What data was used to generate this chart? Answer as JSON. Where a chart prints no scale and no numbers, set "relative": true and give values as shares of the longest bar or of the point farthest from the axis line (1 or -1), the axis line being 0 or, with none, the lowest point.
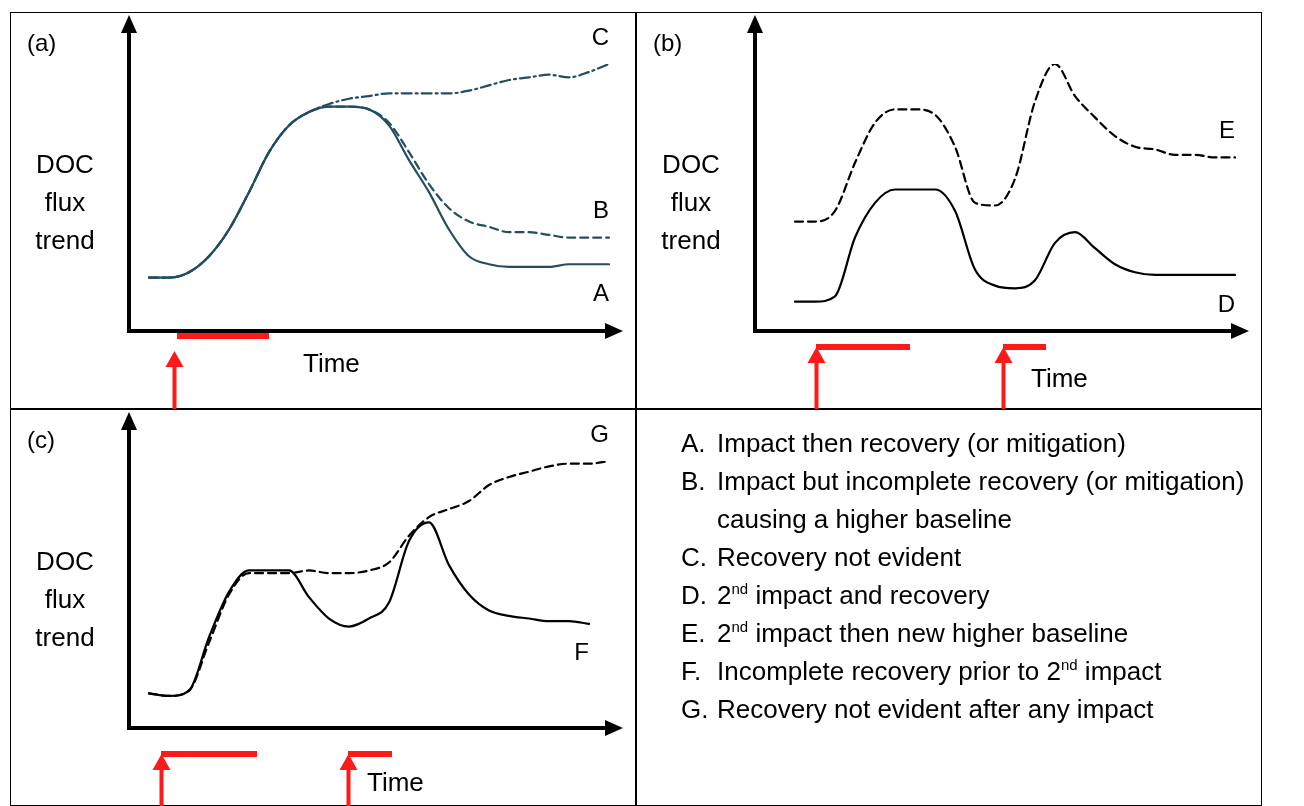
{
  "chart_data": [
    {
      "type": "line",
      "title": "(a)",
      "xlabel": "Time",
      "ylabel": "DOC flux trend",
      "relative": true,
      "marker": "none",
      "categories": [
        null,
        null,
        null,
        null,
        null,
        null,
        null,
        null,
        null,
        null,
        null,
        null,
        null,
        null,
        null,
        null,
        null,
        null,
        null,
        null,
        null,
        null,
        null,
        null,
        null
      ],
      "series": [
        {
          "name": "A",
          "color": "#234d63",
          "line_style": "solid",
          "values": [
            null,
            0.2,
            0.2,
            0.22,
            0.28,
            0.38,
            0.52,
            0.67,
            0.77,
            0.82,
            0.84,
            0.84,
            0.83,
            0.77,
            0.64,
            0.52,
            0.38,
            0.28,
            0.25,
            0.24,
            0.24,
            0.24,
            0.25,
            0.25,
            0.25
          ]
        },
        {
          "name": "B",
          "color": "#234d63",
          "line_style": "dashed",
          "values": [
            null,
            0.2,
            0.2,
            0.22,
            0.28,
            0.38,
            0.52,
            0.67,
            0.77,
            0.82,
            0.84,
            0.84,
            0.83,
            0.78,
            0.67,
            0.55,
            0.46,
            0.41,
            0.39,
            0.37,
            0.37,
            0.36,
            0.35,
            0.35,
            0.35
          ]
        },
        {
          "name": "C",
          "color": "#234d63",
          "line_style": "dashdot",
          "values": [
            null,
            0.2,
            0.2,
            0.22,
            0.28,
            0.38,
            0.52,
            0.67,
            0.77,
            0.82,
            0.85,
            0.87,
            0.88,
            0.89,
            0.89,
            0.89,
            0.89,
            0.9,
            0.92,
            0.94,
            0.95,
            0.96,
            0.95,
            0.97,
            1
          ]
        }
      ]
    },
    {
      "type": "line",
      "title": "(b)",
      "xlabel": "Time",
      "ylabel": "DOC flux trend",
      "relative": true,
      "marker": "none",
      "categories": [
        null,
        null,
        null,
        null,
        null,
        null,
        null,
        null,
        null,
        null,
        null,
        null,
        null,
        null,
        null,
        null,
        null,
        null,
        null,
        null,
        null,
        null,
        null,
        null,
        null
      ],
      "series": [
        {
          "name": "D",
          "color": "#000000",
          "line_style": "solid",
          "values": [
            null,
            null,
            0.11,
            0.11,
            0.13,
            0.35,
            0.48,
            0.53,
            0.53,
            0.53,
            0.45,
            0.23,
            0.17,
            0.16,
            0.19,
            0.33,
            0.37,
            0.31,
            0.25,
            0.22,
            0.21,
            0.21,
            0.21,
            0.21,
            0.21
          ]
        },
        {
          "name": "E",
          "color": "#000000",
          "line_style": "dashed",
          "values": [
            null,
            null,
            0.41,
            0.41,
            0.45,
            0.63,
            0.78,
            0.83,
            0.83,
            0.81,
            0.69,
            0.48,
            0.47,
            0.57,
            0.86,
            1,
            0.88,
            0.8,
            0.73,
            0.69,
            0.68,
            0.66,
            0.66,
            0.65,
            0.65
          ]
        }
      ]
    },
    {
      "type": "line",
      "title": "(c)",
      "xlabel": "Time",
      "ylabel": "DOC flux trend",
      "relative": true,
      "marker": "none",
      "categories": [
        null,
        null,
        null,
        null,
        null,
        null,
        null,
        null,
        null,
        null,
        null,
        null,
        null,
        null,
        null,
        null,
        null,
        null,
        null,
        null,
        null,
        null,
        null,
        null,
        null
      ],
      "series": [
        {
          "name": "F",
          "color": "#000000",
          "line_style": "solid",
          "values": [
            null,
            0.13,
            0.12,
            0.14,
            0.34,
            0.51,
            0.59,
            0.59,
            0.59,
            0.49,
            0.41,
            0.38,
            0.41,
            0.47,
            0.7,
            0.77,
            0.61,
            0.5,
            0.44,
            0.42,
            0.41,
            0.4,
            0.4,
            0.39,
            null
          ]
        },
        {
          "name": "G",
          "color": "#000000",
          "line_style": "dashed",
          "values": [
            null,
            0.13,
            0.12,
            0.14,
            0.32,
            0.5,
            0.58,
            0.58,
            0.58,
            0.59,
            0.58,
            0.58,
            0.59,
            0.62,
            0.72,
            0.79,
            0.82,
            0.85,
            0.91,
            0.94,
            0.96,
            0.98,
            0.99,
            0.99,
            1
          ]
        }
      ]
    },
    {
      "type": "other",
      "annotations": [
        "A. Impact then recovery (or mitigation)",
        "B. Impact but incomplete recovery (or mitigation) causing a higher baseline",
        "C. Recovery not evident",
        "D. 2$^{nd}$ impact and recovery",
        "E. 2$^{nd}$ impact then new higher baseline",
        "F. Incomplete recovery prior to 2$^{nd}$ impact",
        "G. Recovery not evident after any impact"
      ]
    }
  ]
}
